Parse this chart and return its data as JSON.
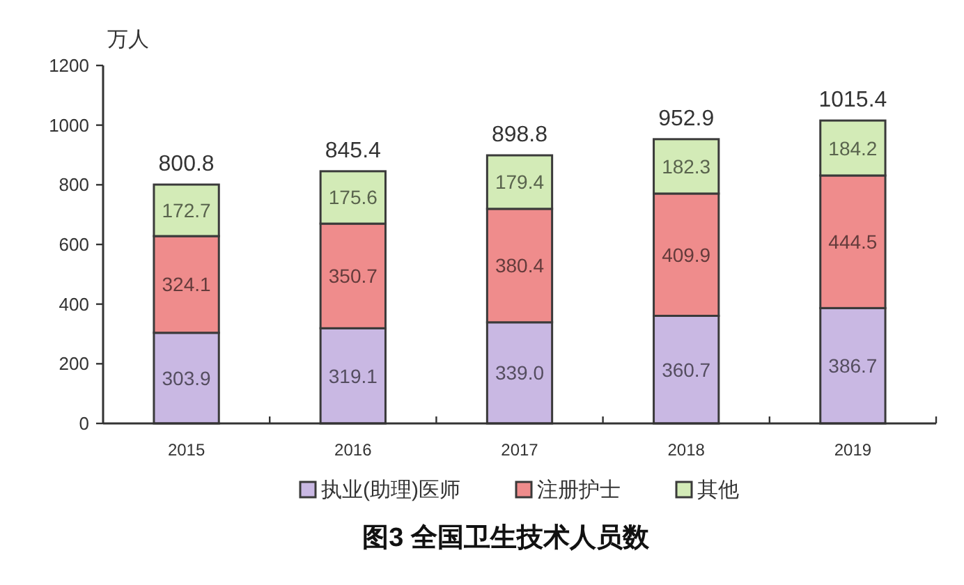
{
  "chart_data": {
    "type": "bar",
    "title": "图3 全国卫生技术人员数",
    "ylabel": "万人",
    "categories": [
      "2015",
      "2016",
      "2017",
      "2018",
      "2019"
    ],
    "stacked": true,
    "series": [
      {
        "name": "执业(助理)医师",
        "color": "#c9b8e3",
        "values": [
          303.9,
          319.1,
          339.0,
          360.7,
          386.7
        ],
        "value_labels": [
          "303.9",
          "319.1",
          "339.0",
          "360.7",
          "386.7"
        ]
      },
      {
        "name": "注册护士",
        "color": "#ef8c8c",
        "values": [
          324.1,
          350.7,
          380.4,
          409.9,
          444.5
        ],
        "value_labels": [
          "324.1",
          "350.7",
          "380.4",
          "409.9",
          "444.5"
        ]
      },
      {
        "name": "其他",
        "color": "#d3ebb7",
        "values": [
          172.7,
          175.6,
          179.4,
          182.3,
          184.2
        ],
        "value_labels": [
          "172.7",
          "175.6",
          "179.4",
          "182.3",
          "184.2"
        ]
      }
    ],
    "totals": [
      "800.8",
      "845.4",
      "898.8",
      "952.9",
      "1015.4"
    ],
    "ylim": [
      0,
      1200
    ],
    "yticks": [
      0,
      200,
      400,
      600,
      800,
      1000,
      1200
    ],
    "legend": "bottom",
    "grid": false
  }
}
